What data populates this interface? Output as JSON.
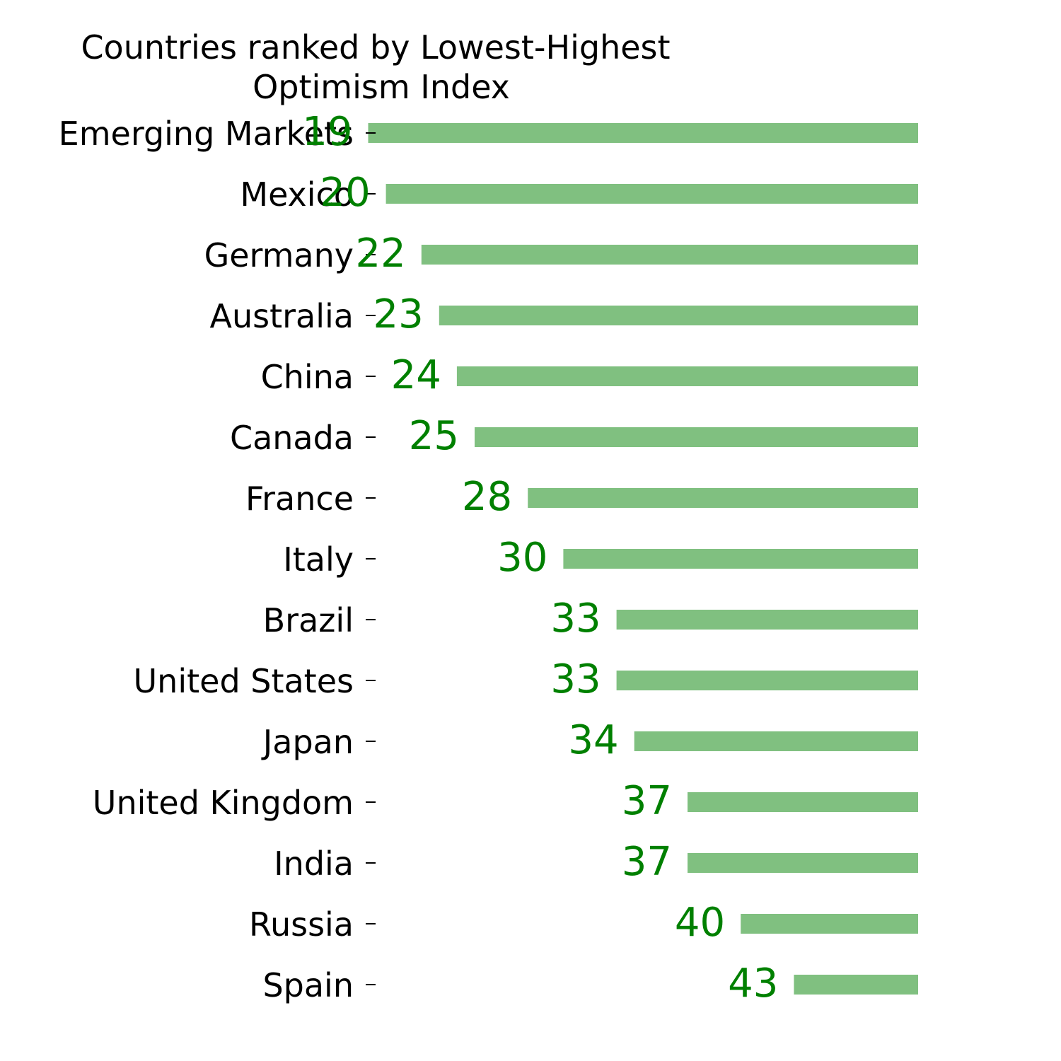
{
  "chart_data": {
    "type": "bar",
    "orientation": "horizontal",
    "title": "Countries ranked by Lowest-Highest Optimism Index",
    "title_lines": [
      "Countries ranked by Lowest-Highest",
      "Optimism Index"
    ],
    "xlabel": "",
    "ylabel": "",
    "categories": [
      "Emerging Markets",
      "Mexico",
      "Germany",
      "Australia",
      "China",
      "Canada",
      "France",
      "Italy",
      "Brazil",
      "United States",
      "Japan",
      "United Kingdom",
      "India",
      "Russia",
      "Spain"
    ],
    "values": [
      19,
      20,
      22,
      23,
      24,
      25,
      28,
      30,
      33,
      33,
      34,
      37,
      37,
      40,
      43
    ],
    "value_labels": [
      "19",
      "20",
      "22",
      "23",
      "24",
      "25",
      "28",
      "30",
      "33",
      "33",
      "34",
      "37",
      "37",
      "40",
      "43"
    ],
    "bars_anchored": "right",
    "xlim": [
      0,
      50
    ],
    "grid": false,
    "legend": "none",
    "colors": {
      "bar": "#80c080",
      "value_label": "#008000",
      "text": "#000000"
    }
  }
}
